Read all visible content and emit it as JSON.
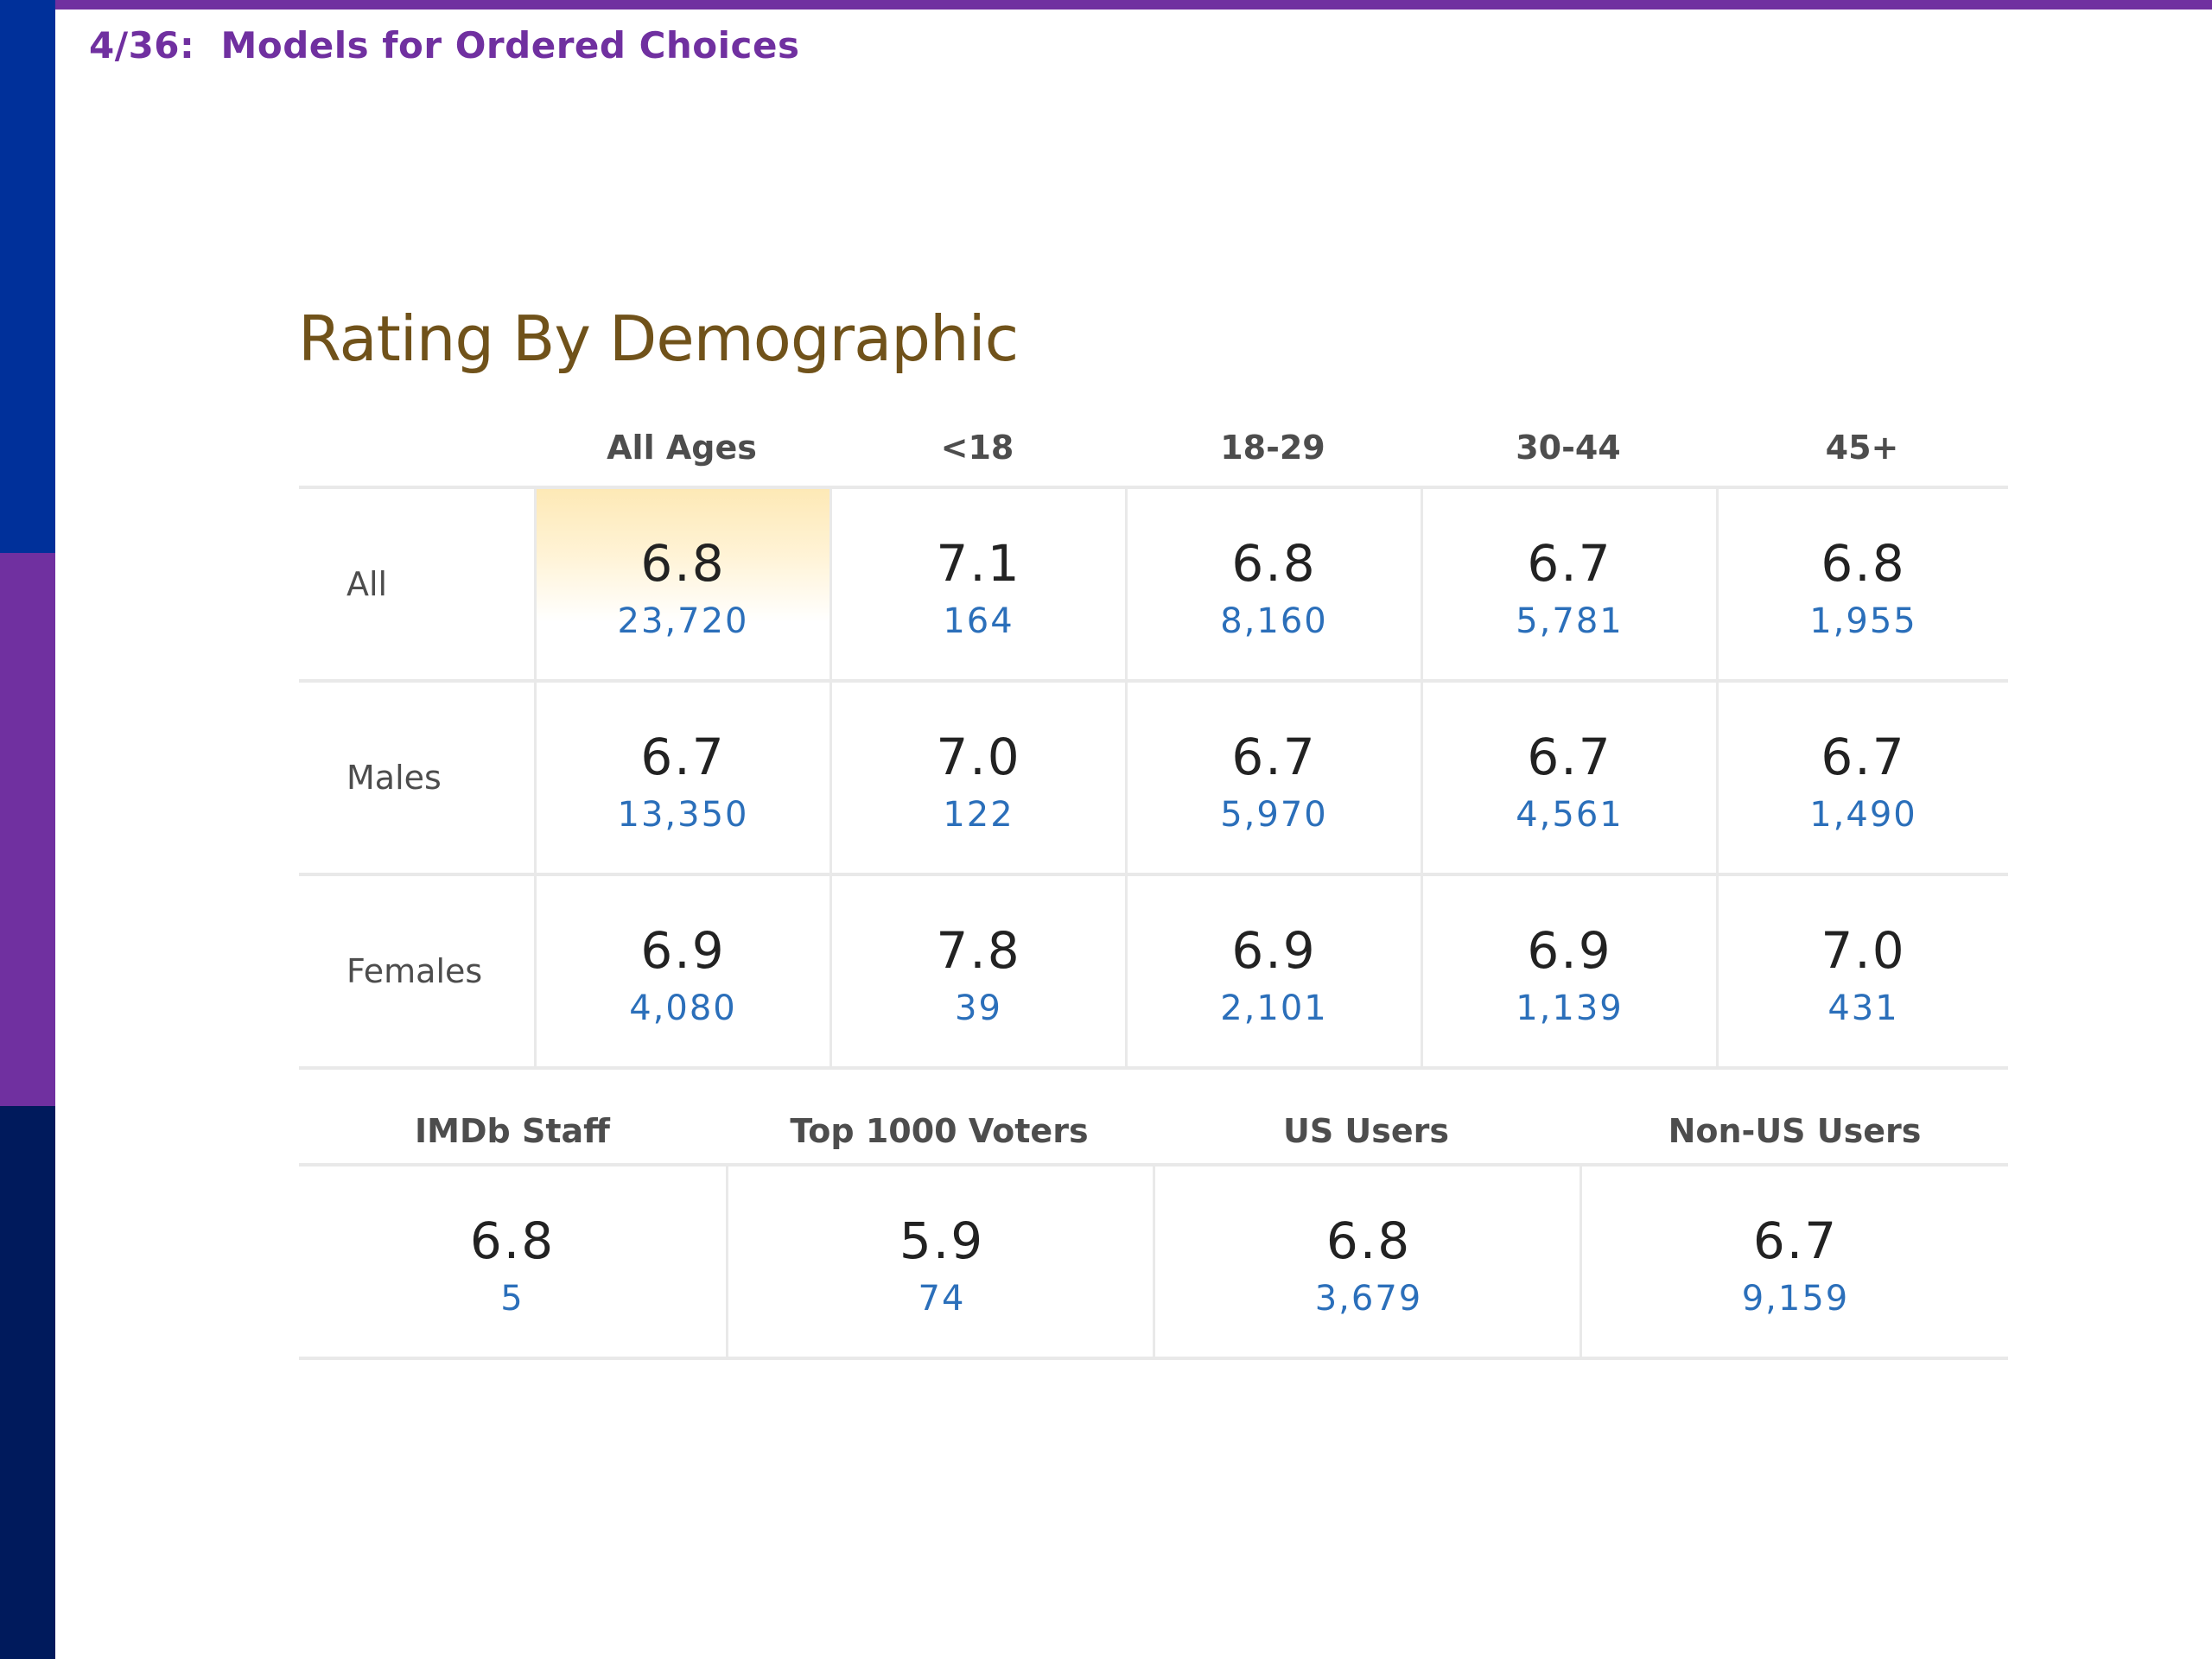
{
  "slide": {
    "header": "4/36:  Models for Ordered Choices"
  },
  "title": "Rating By Demographic",
  "demographic_table": {
    "columns": [
      "All Ages",
      "<18",
      "18-29",
      "30-44",
      "45+"
    ],
    "rows": [
      {
        "label": "All",
        "cells": [
          {
            "rating": "6.8",
            "votes": "23,720"
          },
          {
            "rating": "7.1",
            "votes": "164"
          },
          {
            "rating": "6.8",
            "votes": "8,160"
          },
          {
            "rating": "6.7",
            "votes": "5,781"
          },
          {
            "rating": "6.8",
            "votes": "1,955"
          }
        ]
      },
      {
        "label": "Males",
        "cells": [
          {
            "rating": "6.7",
            "votes": "13,350"
          },
          {
            "rating": "7.0",
            "votes": "122"
          },
          {
            "rating": "6.7",
            "votes": "5,970"
          },
          {
            "rating": "6.7",
            "votes": "4,561"
          },
          {
            "rating": "6.7",
            "votes": "1,490"
          }
        ]
      },
      {
        "label": "Females",
        "cells": [
          {
            "rating": "6.9",
            "votes": "4,080"
          },
          {
            "rating": "7.8",
            "votes": "39"
          },
          {
            "rating": "6.9",
            "votes": "2,101"
          },
          {
            "rating": "6.9",
            "votes": "1,139"
          },
          {
            "rating": "7.0",
            "votes": "431"
          }
        ]
      }
    ]
  },
  "group_table": {
    "columns": [
      "IMDb Staff",
      "Top 1000 Voters",
      "US Users",
      "Non-US Users"
    ],
    "cells": [
      {
        "rating": "6.8",
        "votes": "5"
      },
      {
        "rating": "5.9",
        "votes": "74"
      },
      {
        "rating": "6.8",
        "votes": "3,679"
      },
      {
        "rating": "6.7",
        "votes": "9,159"
      }
    ]
  },
  "colors": {
    "stripe_top": "#00309a",
    "stripe_middle": "#7030a0",
    "stripe_bottom": "#001a5c",
    "header_text": "#7030a0",
    "title_text": "#70521a",
    "vote_count": "#2b6fba",
    "highlight": "#fde9b6"
  }
}
